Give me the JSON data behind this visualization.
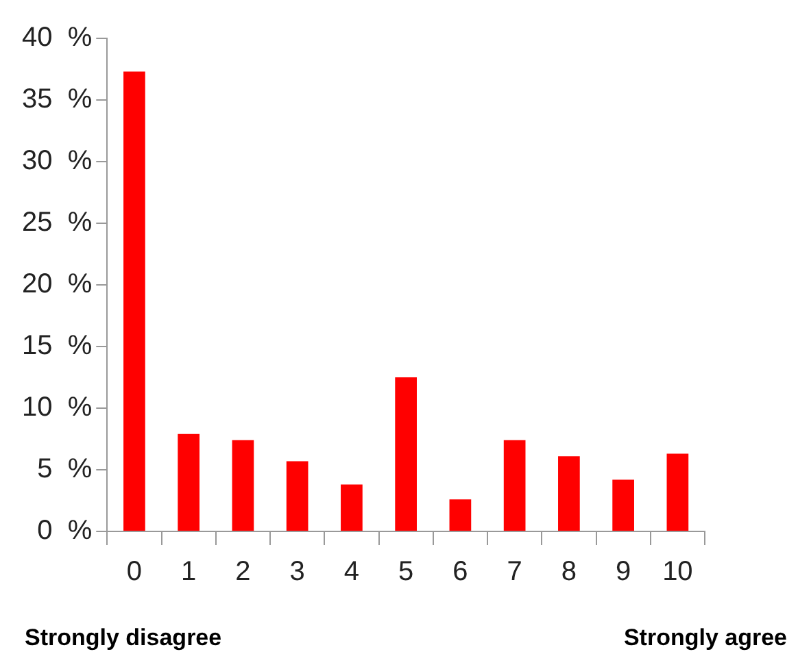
{
  "chart_data": {
    "type": "bar",
    "categories": [
      "0",
      "1",
      "2",
      "3",
      "4",
      "5",
      "6",
      "7",
      "8",
      "9",
      "10"
    ],
    "values": [
      37.3,
      7.9,
      7.4,
      5.7,
      3.8,
      12.5,
      2.6,
      7.4,
      6.1,
      4.2,
      6.3
    ],
    "color": "#ff0000",
    "ylim": [
      0,
      40
    ],
    "yticks": [
      {
        "value": 0,
        "label": "0  %"
      },
      {
        "value": 5,
        "label": "5  %"
      },
      {
        "value": 10,
        "label": "10  %"
      },
      {
        "value": 15,
        "label": "15  %"
      },
      {
        "value": 20,
        "label": "20  %"
      },
      {
        "value": 25,
        "label": "25  %"
      },
      {
        "value": 30,
        "label": "30  %"
      },
      {
        "value": 35,
        "label": "35  %"
      },
      {
        "value": 40,
        "label": "40  %"
      }
    ],
    "grid": false,
    "legend": false,
    "annotations": [
      "Strongly disagree",
      "Strongly agree"
    ]
  }
}
